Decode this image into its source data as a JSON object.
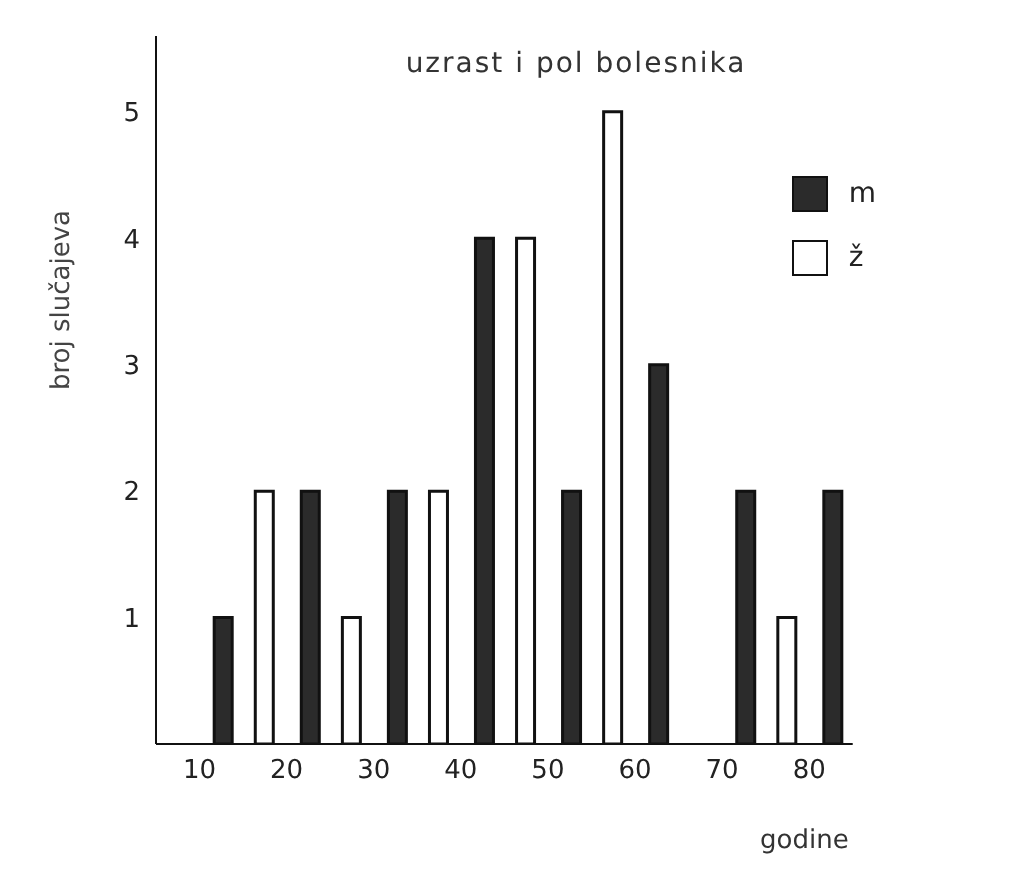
{
  "chart_data": {
    "type": "bar",
    "title": "uzrast i pol bolesnika",
    "xlabel": "godine",
    "ylabel": "broj slučajeva",
    "categories": [
      "10",
      "20",
      "30",
      "40",
      "50",
      "60",
      "70",
      "80"
    ],
    "series": [
      {
        "name": "m",
        "color": "#2b2b2b",
        "values": [
          1,
          2,
          2,
          4,
          2,
          3,
          2,
          2
        ]
      },
      {
        "name": "ž",
        "color": "#ffffff",
        "values": [
          0,
          2,
          1,
          2,
          4,
          5,
          0,
          1
        ]
      }
    ],
    "ylim": [
      0,
      5.6
    ],
    "yticks": [
      1,
      2,
      3,
      4,
      5
    ],
    "legend": "top right"
  }
}
